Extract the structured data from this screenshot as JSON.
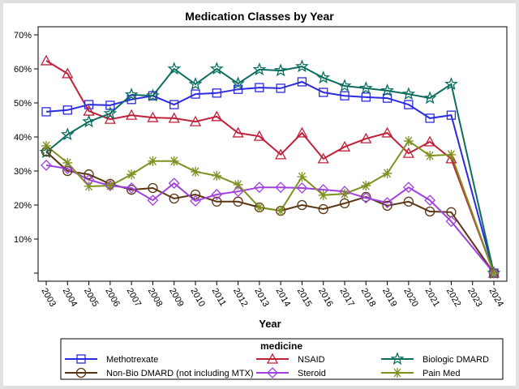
{
  "chart_data": {
    "type": "line",
    "title": "Medication Classes by Year",
    "xlabel": "Year",
    "ylabel": "",
    "ylim": [
      -0.5,
      70.5
    ],
    "yticks": [
      0,
      10,
      20,
      30,
      40,
      50,
      60,
      70
    ],
    "ytick_labels": [
      "",
      "10%",
      "20%",
      "30%",
      "40%",
      "50%",
      "60%",
      "70%"
    ],
    "x_ticks": [
      2003,
      2004,
      2005,
      2006,
      2007,
      2008,
      2009,
      2010,
      2011,
      2012,
      2013,
      2014,
      2015,
      2016,
      2017,
      2018,
      2019,
      2020,
      2021,
      2022,
      2023,
      2024
    ],
    "x_tick_labels": [
      "2003",
      "2004",
      "2005",
      "2006",
      "2007",
      "2008",
      "2009",
      "2010",
      "2011",
      "2012",
      "2013",
      "2014",
      "2015",
      "2016",
      "2017",
      "2018",
      "2019",
      "2020",
      "2021",
      "2022",
      "2023",
      "2024"
    ],
    "x": [
      2003,
      2004,
      2005,
      2006,
      2007,
      2008,
      2009,
      2010,
      2011,
      2012,
      2013,
      2014,
      2015,
      2016,
      2017,
      2018,
      2019,
      2020,
      2021,
      2022,
      2024
    ],
    "legend_title": "medicine",
    "legend_position": "bottom",
    "series": [
      {
        "name": "Methotrexate",
        "color": "#2a2ae0",
        "marker": "square",
        "values": [
          47.4,
          47.9,
          49.5,
          49.3,
          51.0,
          52.1,
          49.5,
          52.6,
          52.9,
          54.0,
          54.5,
          54.3,
          56.2,
          53.1,
          52.1,
          51.7,
          51.4,
          49.5,
          45.5,
          46.4,
          0
        ]
      },
      {
        "name": "NSAID",
        "color": "#c0203a",
        "marker": "triangle",
        "values": [
          62.4,
          58.6,
          47.6,
          45.2,
          46.4,
          45.7,
          45.5,
          44.5,
          46.0,
          41.2,
          40.2,
          34.8,
          41.2,
          33.6,
          37.1,
          39.5,
          41.2,
          35.2,
          38.6,
          33.6,
          0
        ]
      },
      {
        "name": "Biologic DMARD",
        "color": "#0a6e5e",
        "marker": "star",
        "values": [
          35.5,
          40.7,
          44.5,
          46.9,
          52.4,
          52.1,
          60.0,
          55.5,
          60.0,
          55.7,
          59.8,
          59.5,
          60.7,
          57.4,
          55.0,
          54.3,
          53.6,
          52.6,
          51.4,
          55.5,
          0
        ]
      },
      {
        "name": "Non-Bio DMARD (not including MTX)",
        "color": "#5a3510",
        "marker": "circle",
        "values": [
          35.7,
          30.0,
          29.0,
          26.2,
          24.5,
          25.0,
          21.9,
          23.1,
          21.0,
          21.0,
          19.3,
          18.3,
          20.0,
          18.8,
          20.5,
          22.4,
          19.8,
          21.0,
          18.1,
          17.9,
          0
        ]
      },
      {
        "name": "Steroid",
        "color": "#a040e0",
        "marker": "diamond",
        "values": [
          31.7,
          30.7,
          27.4,
          25.7,
          25.0,
          21.4,
          26.4,
          21.2,
          23.1,
          24.0,
          25.2,
          25.2,
          25.0,
          24.5,
          24.0,
          22.1,
          20.7,
          25.2,
          21.4,
          15.2,
          0
        ]
      },
      {
        "name": "Pain Med",
        "color": "#7f9020",
        "marker": "asterisk",
        "values": [
          37.4,
          32.4,
          25.5,
          25.7,
          29.0,
          32.9,
          32.9,
          29.8,
          28.6,
          26.0,
          19.3,
          18.3,
          28.3,
          22.9,
          23.3,
          25.7,
          29.3,
          38.8,
          34.5,
          34.8,
          0
        ]
      }
    ]
  }
}
